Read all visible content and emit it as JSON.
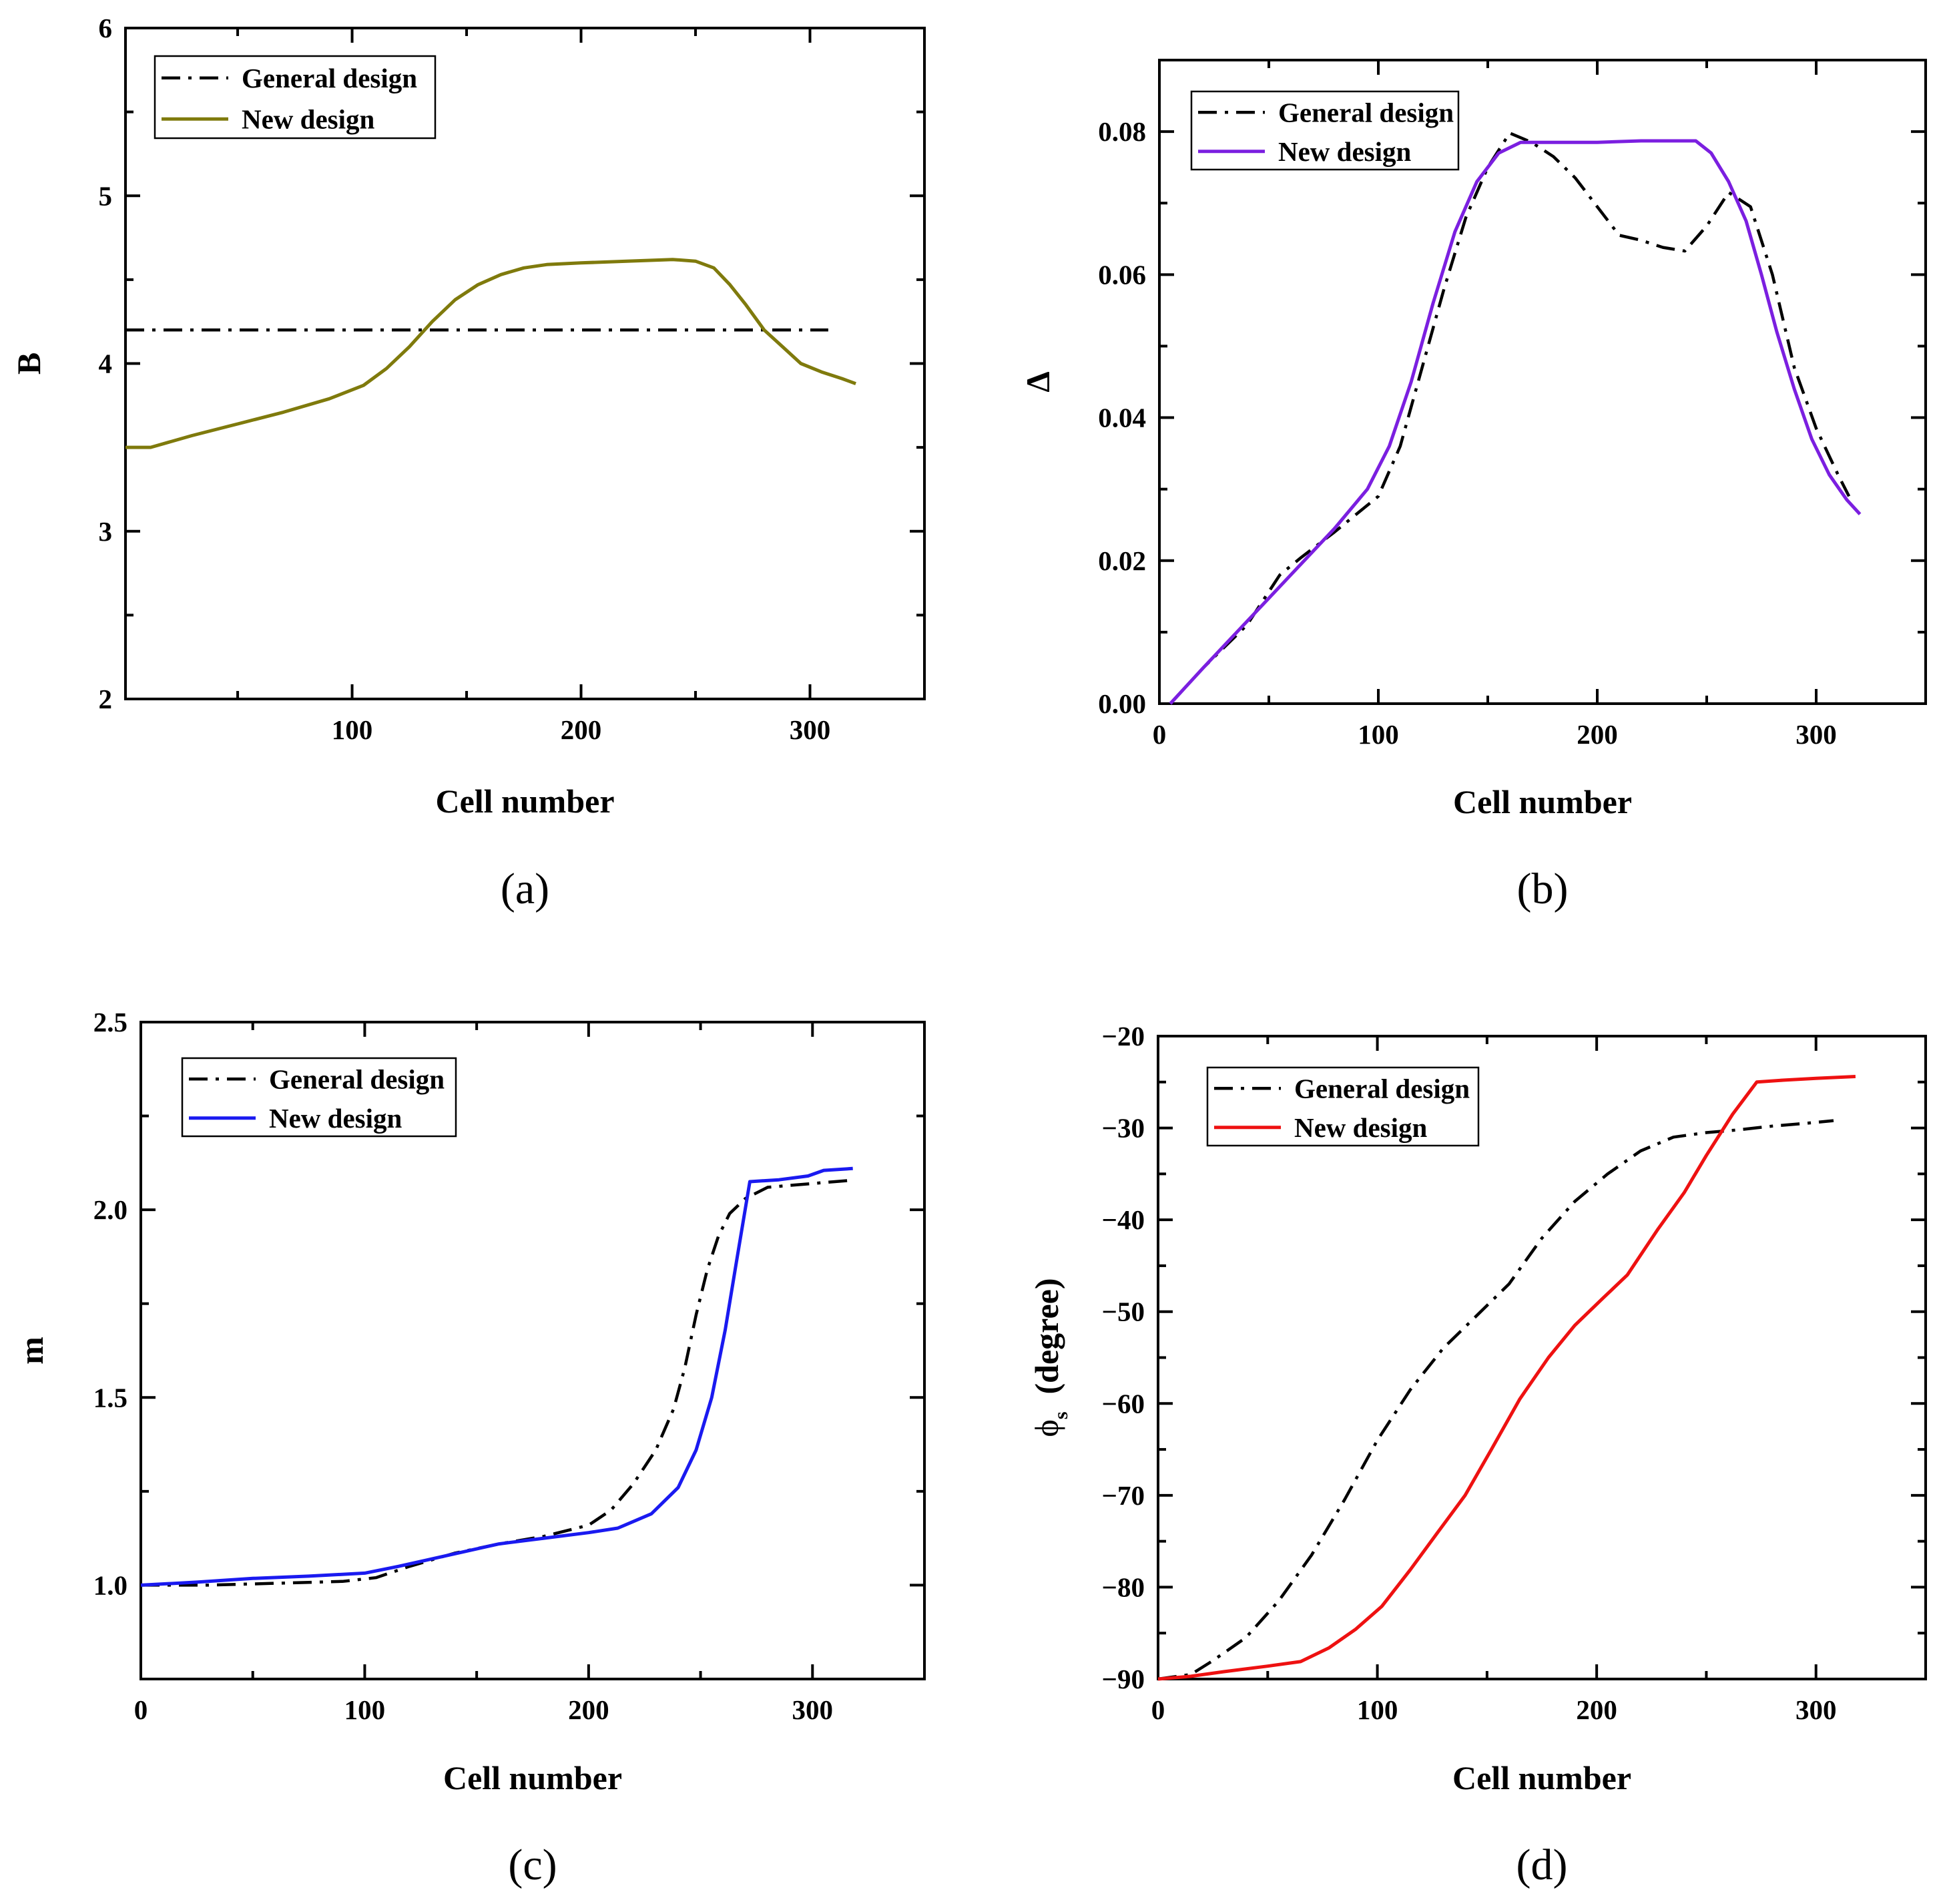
{
  "chart_data": [
    {
      "type": "line",
      "panel_label": "(a)",
      "xlabel": "Cell number",
      "ylabel": "B",
      "xlim": [
        1,
        350
      ],
      "ylim": [
        2,
        6
      ],
      "xticks": [
        100,
        200,
        300
      ],
      "xtick_labels": [
        "100",
        "200",
        "300"
      ],
      "yticks": [
        2,
        3,
        4,
        5,
        6
      ],
      "ytick_labels": [
        "2",
        "3",
        "4",
        "5",
        "6"
      ],
      "legend_position": "top-left",
      "series": [
        {
          "name": "General design",
          "color": "#000000",
          "style": "dashdot",
          "points": [
            [
              1,
              4.2
            ],
            [
              308,
              4.2
            ]
          ]
        },
        {
          "name": "New design",
          "color": "#7f7a0c",
          "style": "solid",
          "points": [
            [
              1,
              3.5
            ],
            [
              12,
              3.5
            ],
            [
              30,
              3.57
            ],
            [
              50,
              3.64
            ],
            [
              70,
              3.71
            ],
            [
              90,
              3.79
            ],
            [
              105,
              3.87
            ],
            [
              115,
              3.97
            ],
            [
              125,
              4.1
            ],
            [
              135,
              4.25
            ],
            [
              145,
              4.38
            ],
            [
              155,
              4.47
            ],
            [
              165,
              4.53
            ],
            [
              175,
              4.57
            ],
            [
              185,
              4.59
            ],
            [
              200,
              4.6
            ],
            [
              220,
              4.61
            ],
            [
              240,
              4.62
            ],
            [
              250,
              4.61
            ],
            [
              258,
              4.57
            ],
            [
              265,
              4.47
            ],
            [
              272,
              4.35
            ],
            [
              280,
              4.2
            ],
            [
              288,
              4.1
            ],
            [
              296,
              4.0
            ],
            [
              305,
              3.95
            ],
            [
              314,
              3.91
            ],
            [
              320,
              3.88
            ]
          ]
        }
      ]
    },
    {
      "type": "line",
      "panel_label": "(b)",
      "xlabel": "Cell number",
      "ylabel": "Δ",
      "xlim": [
        0,
        350
      ],
      "ylim": [
        0,
        0.09
      ],
      "xticks": [
        0,
        100,
        200,
        300
      ],
      "xtick_labels": [
        "0",
        "100",
        "200",
        "300"
      ],
      "yticks": [
        0,
        0.02,
        0.04,
        0.06,
        0.08
      ],
      "ytick_labels": [
        "0.00",
        "0.02",
        "0.04",
        "0.06",
        "0.08"
      ],
      "legend_position": "top-left",
      "series": [
        {
          "name": "General design",
          "color": "#000000",
          "style": "dashdot",
          "points": [
            [
              5,
              0
            ],
            [
              20,
              0.005
            ],
            [
              40,
              0.011
            ],
            [
              55,
              0.018
            ],
            [
              65,
              0.0205
            ],
            [
              80,
              0.024
            ],
            [
              100,
              0.029
            ],
            [
              110,
              0.036
            ],
            [
              120,
              0.047
            ],
            [
              130,
              0.058
            ],
            [
              140,
              0.068
            ],
            [
              150,
              0.075
            ],
            [
              160,
              0.0798
            ],
            [
              170,
              0.0785
            ],
            [
              180,
              0.0765
            ],
            [
              190,
              0.0735
            ],
            [
              200,
              0.0695
            ],
            [
              210,
              0.0655
            ],
            [
              220,
              0.0648
            ],
            [
              230,
              0.0638
            ],
            [
              240,
              0.0633
            ],
            [
              250,
              0.0668
            ],
            [
              260,
              0.0715
            ],
            [
              270,
              0.0695
            ],
            [
              280,
              0.06
            ],
            [
              290,
              0.047
            ],
            [
              300,
              0.0385
            ],
            [
              310,
              0.032
            ],
            [
              315,
              0.029
            ]
          ]
        },
        {
          "name": "New design",
          "color": "#7b1fe0",
          "style": "solid",
          "points": [
            [
              5,
              0
            ],
            [
              20,
              0.005
            ],
            [
              40,
              0.0115
            ],
            [
              60,
              0.018
            ],
            [
              80,
              0.0245
            ],
            [
              95,
              0.03
            ],
            [
              105,
              0.036
            ],
            [
              115,
              0.045
            ],
            [
              125,
              0.056
            ],
            [
              135,
              0.066
            ],
            [
              145,
              0.073
            ],
            [
              155,
              0.077
            ],
            [
              165,
              0.0785
            ],
            [
              180,
              0.0785
            ],
            [
              200,
              0.0785
            ],
            [
              220,
              0.0787
            ],
            [
              240,
              0.0787
            ],
            [
              245,
              0.0787
            ],
            [
              252,
              0.077
            ],
            [
              260,
              0.073
            ],
            [
              268,
              0.0675
            ],
            [
              275,
              0.06
            ],
            [
              282,
              0.052
            ],
            [
              290,
              0.044
            ],
            [
              298,
              0.037
            ],
            [
              306,
              0.032
            ],
            [
              314,
              0.0285
            ],
            [
              320,
              0.0265
            ]
          ]
        }
      ]
    },
    {
      "type": "line",
      "panel_label": "(c)",
      "xlabel": "Cell number",
      "ylabel": "m",
      "xlim": [
        0,
        350
      ],
      "ylim": [
        0.75,
        2.5
      ],
      "xticks": [
        0,
        100,
        200,
        300
      ],
      "xtick_labels": [
        "0",
        "100",
        "200",
        "300"
      ],
      "yticks": [
        1.0,
        1.5,
        2.0,
        2.5
      ],
      "ytick_labels": [
        "1.0",
        "1.5",
        "2.0",
        "2.5"
      ],
      "legend_position": "top-left",
      "series": [
        {
          "name": "General design",
          "color": "#000000",
          "style": "dashdot",
          "points": [
            [
              0,
              1.0
            ],
            [
              30,
              1.0
            ],
            [
              60,
              1.005
            ],
            [
              90,
              1.01
            ],
            [
              105,
              1.02
            ],
            [
              120,
              1.05
            ],
            [
              140,
              1.085
            ],
            [
              160,
              1.11
            ],
            [
              180,
              1.13
            ],
            [
              200,
              1.16
            ],
            [
              210,
              1.2
            ],
            [
              220,
              1.27
            ],
            [
              230,
              1.36
            ],
            [
              238,
              1.47
            ],
            [
              243,
              1.58
            ],
            [
              248,
              1.72
            ],
            [
              253,
              1.84
            ],
            [
              258,
              1.93
            ],
            [
              263,
              1.99
            ],
            [
              270,
              2.03
            ],
            [
              280,
              2.06
            ],
            [
              290,
              2.065
            ],
            [
              300,
              2.07
            ],
            [
              310,
              2.075
            ],
            [
              316,
              2.078
            ]
          ]
        },
        {
          "name": "New design",
          "color": "#1a1af0",
          "style": "solid",
          "points": [
            [
              0,
              1.0
            ],
            [
              25,
              1.008
            ],
            [
              50,
              1.018
            ],
            [
              75,
              1.024
            ],
            [
              100,
              1.032
            ],
            [
              115,
              1.05
            ],
            [
              130,
              1.07
            ],
            [
              145,
              1.09
            ],
            [
              160,
              1.11
            ],
            [
              180,
              1.125
            ],
            [
              200,
              1.14
            ],
            [
              213,
              1.152
            ],
            [
              228,
              1.19
            ],
            [
              240,
              1.26
            ],
            [
              248,
              1.36
            ],
            [
              255,
              1.5
            ],
            [
              261,
              1.68
            ],
            [
              266,
              1.86
            ],
            [
              272,
              2.075
            ],
            [
              285,
              2.08
            ],
            [
              298,
              2.09
            ],
            [
              305,
              2.105
            ],
            [
              318,
              2.11
            ]
          ]
        }
      ]
    },
    {
      "type": "line",
      "panel_label": "(d)",
      "xlabel": "Cell number",
      "ylabel": "φs (degree)",
      "ylabel_main": "ϕ",
      "ylabel_sub": "s",
      "ylabel_unit": "(degree)",
      "xlim": [
        0,
        350
      ],
      "ylim": [
        -90,
        -20
      ],
      "xticks": [
        0,
        100,
        200,
        300
      ],
      "xtick_labels": [
        "0",
        "100",
        "200",
        "300"
      ],
      "yticks": [
        -90,
        -80,
        -70,
        -60,
        -50,
        -40,
        -30,
        -20
      ],
      "ytick_labels": [
        "−90",
        "−80",
        "−70",
        "−60",
        "−50",
        "−40",
        "−30",
        "−20"
      ],
      "legend_position": "top-left",
      "series": [
        {
          "name": "General design",
          "color": "#000000",
          "style": "dashdot",
          "points": [
            [
              0,
              -90
            ],
            [
              15,
              -89.5
            ],
            [
              25,
              -88
            ],
            [
              40,
              -85.5
            ],
            [
              55,
              -81.5
            ],
            [
              70,
              -76.5
            ],
            [
              85,
              -70.5
            ],
            [
              100,
              -64
            ],
            [
              115,
              -58.5
            ],
            [
              130,
              -54
            ],
            [
              145,
              -50.5
            ],
            [
              160,
              -47
            ],
            [
              175,
              -42
            ],
            [
              190,
              -38
            ],
            [
              205,
              -35
            ],
            [
              220,
              -32.5
            ],
            [
              235,
              -31
            ],
            [
              250,
              -30.5
            ],
            [
              265,
              -30.2
            ],
            [
              280,
              -29.8
            ],
            [
              295,
              -29.5
            ],
            [
              308,
              -29.2
            ]
          ]
        },
        {
          "name": "New design",
          "color": "#ee1111",
          "style": "solid",
          "points": [
            [
              0,
              -90
            ],
            [
              15,
              -89.7
            ],
            [
              30,
              -89.2
            ],
            [
              50,
              -88.6
            ],
            [
              65,
              -88.1
            ],
            [
              78,
              -86.6
            ],
            [
              90,
              -84.6
            ],
            [
              102,
              -82.1
            ],
            [
              115,
              -78.1
            ],
            [
              127,
              -74.2
            ],
            [
              140,
              -70
            ],
            [
              152,
              -65
            ],
            [
              165,
              -59.5
            ],
            [
              178,
              -55
            ],
            [
              190,
              -51.5
            ],
            [
              203,
              -48.5
            ],
            [
              214,
              -46
            ],
            [
              228,
              -41
            ],
            [
              240,
              -37
            ],
            [
              250,
              -33
            ],
            [
              262,
              -28.5
            ],
            [
              273,
              -25
            ],
            [
              285,
              -24.8
            ],
            [
              300,
              -24.6
            ],
            [
              318,
              -24.4
            ]
          ]
        }
      ]
    }
  ]
}
